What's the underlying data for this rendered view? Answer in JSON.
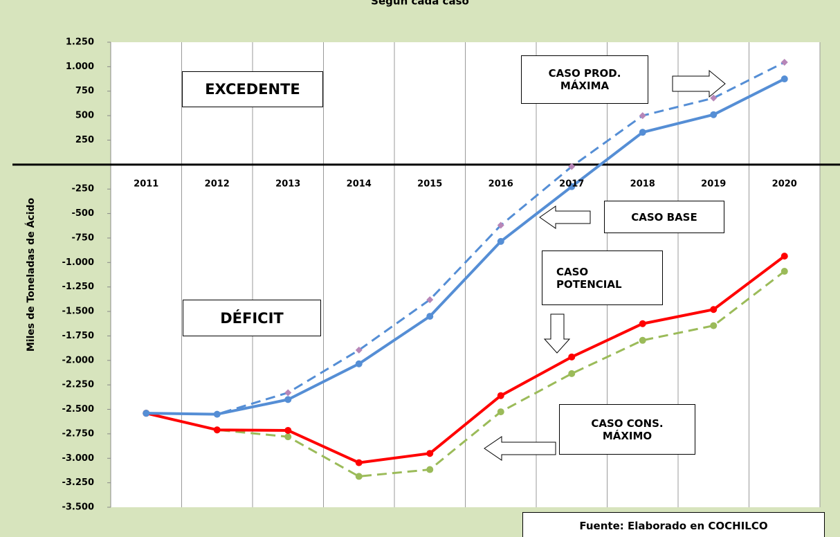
{
  "chart_data": {
    "type": "line",
    "title": "Según cada caso",
    "y_label": "Miles de Toneladas de Ácido",
    "categories": [
      "2011",
      "2012",
      "2013",
      "2014",
      "2015",
      "2016",
      "2017",
      "2018",
      "2019",
      "2020"
    ],
    "series": [
      {
        "name": "CASO BASE",
        "color": "#558ed5",
        "dash": false,
        "marker": "circle",
        "values": [
          -2540,
          -2550,
          -2400,
          -2035,
          -1550,
          -785,
          -225,
          330,
          510,
          875
        ]
      },
      {
        "name": "CASO PROD. MÁXIMA",
        "color": "#558ed5",
        "marker_color": "#b786b8",
        "dash": true,
        "marker": "diamond",
        "values": [
          -2540,
          -2550,
          -2330,
          -1895,
          -1380,
          -620,
          -20,
          500,
          680,
          1045
        ]
      },
      {
        "name": "CASO POTENCIAL",
        "color": "#ff0000",
        "dash": false,
        "marker": "circle",
        "values": [
          -2540,
          -2710,
          -2715,
          -3045,
          -2950,
          -2360,
          -1965,
          -1625,
          -1480,
          -935
        ]
      },
      {
        "name": "CASO CONS. MÁXIMO",
        "color": "#9bbb59",
        "dash": true,
        "marker": "circle",
        "values": [
          -2540,
          -2710,
          -2780,
          -3185,
          -3115,
          -2525,
          -2135,
          -1795,
          -1645,
          -1090
        ]
      }
    ],
    "ylim": [
      -3500,
      1250
    ],
    "yticks": [
      {
        "value": 1250,
        "label": "1.250"
      },
      {
        "value": 1000,
        "label": "1.000"
      },
      750,
      500,
      250,
      {
        "value": 0,
        "label": "-"
      },
      -250,
      -500,
      -750,
      {
        "value": -1000,
        "label": "-1.000"
      },
      {
        "value": -1250,
        "label": "-1.250"
      },
      {
        "value": -1500,
        "label": "-1.500"
      },
      {
        "value": -1750,
        "label": "-1.750"
      },
      {
        "value": -2000,
        "label": "-2.000"
      },
      {
        "value": -2250,
        "label": "-2.250"
      },
      {
        "value": -2500,
        "label": "-2.500"
      },
      {
        "value": -2750,
        "label": "-2.750"
      },
      {
        "value": -3000,
        "label": "-3.000"
      },
      {
        "value": -3250,
        "label": "-3.250"
      },
      {
        "value": -3500,
        "label": "-3.500"
      }
    ],
    "grid": true,
    "annotations": [
      "EXCEDENTE",
      "DÉFICIT",
      "Fuente: Elaborado en COCHILCO"
    ]
  }
}
